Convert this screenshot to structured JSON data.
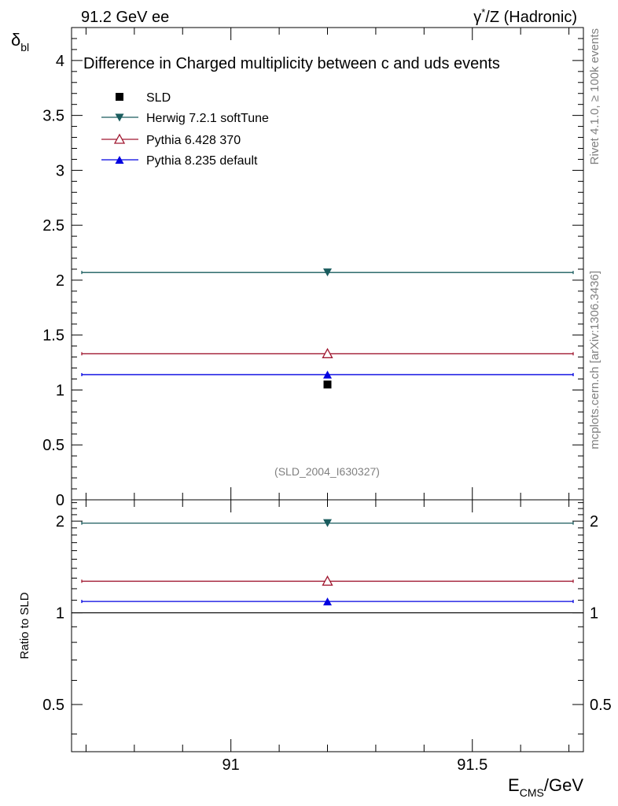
{
  "header": {
    "left": "91.2 GeV ee",
    "right_prefix": "γ",
    "right_sup": "*",
    "right_suffix": "/Z (Hadronic)"
  },
  "side_labels": {
    "rivet": "Rivet 4.1.0, ≥ 100k events",
    "mcplots": "mcplots.cern.ch [arXiv:1306.3436]"
  },
  "watermark": "(SLD_2004_I630327)",
  "colors": {
    "SLD": "#000000",
    "herwig": "#1a5c5e",
    "pythia6": "#a01830",
    "pythia8": "#0000e0"
  },
  "chart_data": [
    {
      "type": "scatter",
      "title": "Difference in Charged multiplicity between c and uds events",
      "ylabel_main": "δ",
      "ylabel_sub": "bl",
      "xlim": [
        90.67,
        91.73
      ],
      "ylim": [
        0,
        4.3
      ],
      "yticks": [
        0,
        0.5,
        1,
        1.5,
        2,
        2.5,
        3,
        3.5,
        4
      ],
      "ytick_labels": [
        "0",
        "0.5",
        "1",
        "1.5",
        "2",
        "2.5",
        "3",
        "3.5",
        "4"
      ],
      "series": [
        {
          "name": "SLD",
          "key": "SLD",
          "marker": "square",
          "x": [
            91.2
          ],
          "y": [
            1.05
          ],
          "xerr": [
            0
          ]
        },
        {
          "name": "Herwig 7.2.1 softTune",
          "key": "herwig",
          "marker": "triangle-down",
          "x": [
            91.2
          ],
          "y": [
            2.07
          ],
          "xerr": [
            0.52
          ]
        },
        {
          "name": "Pythia 6.428 370",
          "key": "pythia6",
          "marker": "triangle-up-open",
          "x": [
            91.2
          ],
          "y": [
            1.33
          ],
          "xerr": [
            0.52
          ]
        },
        {
          "name": "Pythia 8.235 default",
          "key": "pythia8",
          "marker": "triangle-up",
          "x": [
            91.2
          ],
          "y": [
            1.14
          ],
          "xerr": [
            0.52
          ]
        }
      ]
    },
    {
      "type": "scatter",
      "title": "",
      "ylabel": "Ratio to SLD",
      "xlabel_main": "E",
      "xlabel_sub": "CMS",
      "xlabel_suffix": "/GeV",
      "xlim": [
        90.67,
        91.73
      ],
      "ylim": [
        0.35,
        2.35
      ],
      "xticks": [
        91,
        91.5
      ],
      "xtick_labels": [
        "91",
        "91.5"
      ],
      "yticks": [
        0.5,
        1,
        2
      ],
      "ytick_labels": [
        "0.5",
        "1",
        "2"
      ],
      "reference": 1,
      "series": [
        {
          "name": "Herwig 7.2.1 softTune",
          "key": "herwig",
          "marker": "triangle-down",
          "x": [
            91.2
          ],
          "y": [
            1.97
          ],
          "xerr": [
            0.52
          ]
        },
        {
          "name": "Pythia 6.428 370",
          "key": "pythia6",
          "marker": "triangle-up-open",
          "x": [
            91.2
          ],
          "y": [
            1.27
          ],
          "xerr": [
            0.52
          ]
        },
        {
          "name": "Pythia 8.235 default",
          "key": "pythia8",
          "marker": "triangle-up",
          "x": [
            91.2
          ],
          "y": [
            1.09
          ],
          "xerr": [
            0.52
          ]
        }
      ]
    }
  ]
}
